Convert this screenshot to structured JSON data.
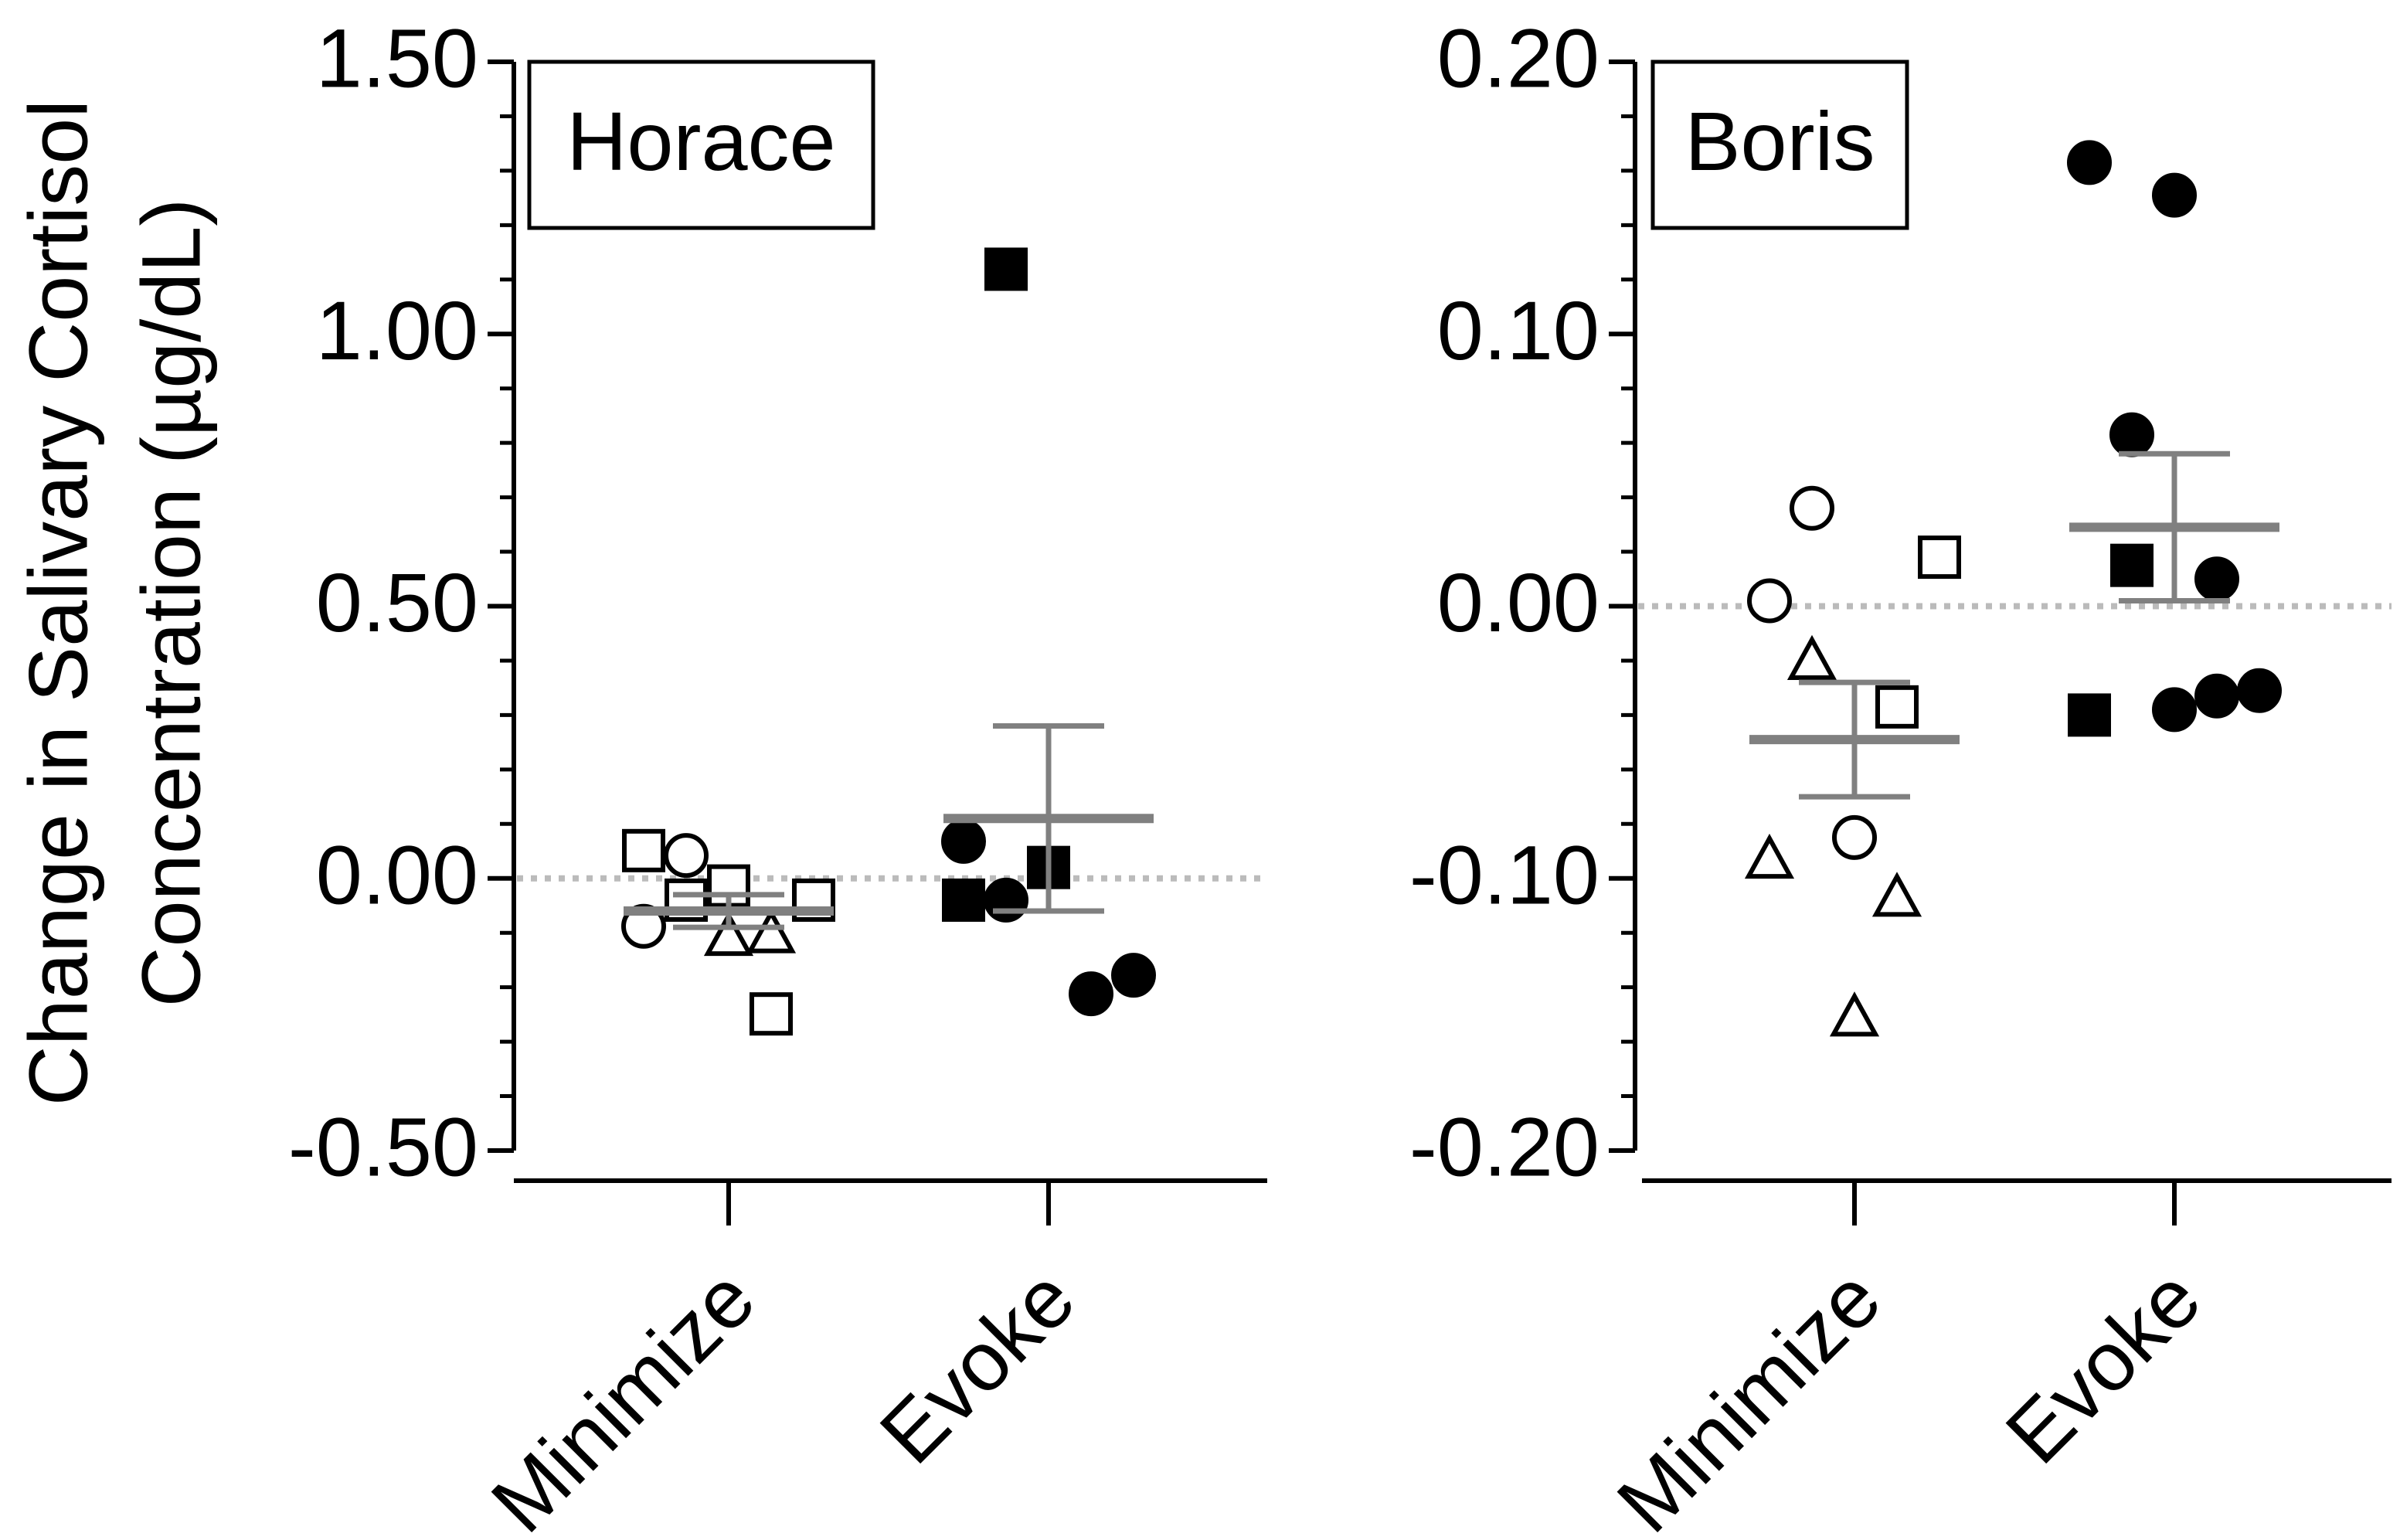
{
  "chart_data": [
    {
      "type": "scatter",
      "title": "Horace",
      "ylabel": [
        "Change in Salivary Cortisol",
        "Concentration (µg/dL)"
      ],
      "ylim": [
        -0.5,
        1.5
      ],
      "yticks": [
        {
          "value": -0.5,
          "label": "-0.50"
        },
        {
          "value": 0,
          "label": "0.00"
        },
        {
          "value": 0.5,
          "label": "0.50"
        },
        {
          "value": 1,
          "label": "1.00"
        },
        {
          "value": 1.5,
          "label": "1.50"
        }
      ],
      "minor_yticks": [
        -0.4,
        -0.3,
        -0.2,
        -0.1,
        0.1,
        0.2,
        0.3,
        0.4,
        0.6,
        0.7,
        0.8,
        0.9,
        1.1,
        1.2,
        1.3,
        1.4
      ],
      "reference_line": 0,
      "marker_color": "#000000",
      "summary_color": "#808080",
      "reference_color": "#bbbbbb",
      "groups": [
        {
          "category": "Minimize",
          "mean": -0.06,
          "sem": 0.03,
          "series": [
            {
              "marker": "square",
              "filled": false,
              "values": [
                0.051,
                -0.04,
                -0.014,
                -0.249,
                -0.04
              ]
            },
            {
              "marker": "circle",
              "filled": false,
              "values": [
                -0.088,
                0.042
              ]
            },
            {
              "marker": "triangle",
              "filled": false,
              "values": [
                -0.107,
                -0.102
              ]
            }
          ]
        },
        {
          "category": "Evoke",
          "mean": 0.11,
          "sem": 0.17,
          "series": [
            {
              "marker": "square",
              "filled": true,
              "values": [
                -0.04,
                1.119,
                0.02
              ]
            },
            {
              "marker": "circle",
              "filled": true,
              "values": [
                -0.212,
                -0.178,
                0.068,
                -0.04
              ]
            }
          ]
        }
      ]
    },
    {
      "type": "scatter",
      "title": "Boris",
      "ylim": [
        -0.2,
        0.2
      ],
      "yticks": [
        {
          "value": -0.2,
          "label": "-0.20"
        },
        {
          "value": -0.1,
          "label": "-0.10"
        },
        {
          "value": 0,
          "label": "0.00"
        },
        {
          "value": 0.1,
          "label": "0.10"
        },
        {
          "value": 0.2,
          "label": "0.20"
        }
      ],
      "minor_yticks": [
        -0.18,
        -0.16,
        -0.14,
        -0.12,
        -0.08,
        -0.06,
        -0.04,
        -0.02,
        0.02,
        0.04,
        0.06,
        0.08,
        0.12,
        0.14,
        0.16,
        0.18
      ],
      "reference_line": 0,
      "marker_color": "#000000",
      "summary_color": "#808080",
      "reference_color": "#bbbbbb",
      "groups": [
        {
          "category": "Minimize",
          "mean": -0.049,
          "sem": 0.021,
          "series": [
            {
              "marker": "circle",
              "filled": false,
              "values": [
                0.002,
                0.036,
                -0.085
              ]
            },
            {
              "marker": "square",
              "filled": false,
              "values": [
                -0.037,
                0.018
              ]
            },
            {
              "marker": "triangle",
              "filled": false,
              "values": [
                -0.093,
                -0.02,
                -0.151,
                -0.107
              ]
            }
          ]
        },
        {
          "category": "Evoke",
          "mean": 0.029,
          "sem": 0.027,
          "series": [
            {
              "marker": "square",
              "filled": true,
              "values": [
                -0.04,
                0.015
              ]
            },
            {
              "marker": "circle",
              "filled": true,
              "values": [
                0.151,
                0.01,
                -0.031,
                0.163,
                0.063,
                -0.038,
                -0.033
              ]
            }
          ]
        }
      ]
    }
  ]
}
